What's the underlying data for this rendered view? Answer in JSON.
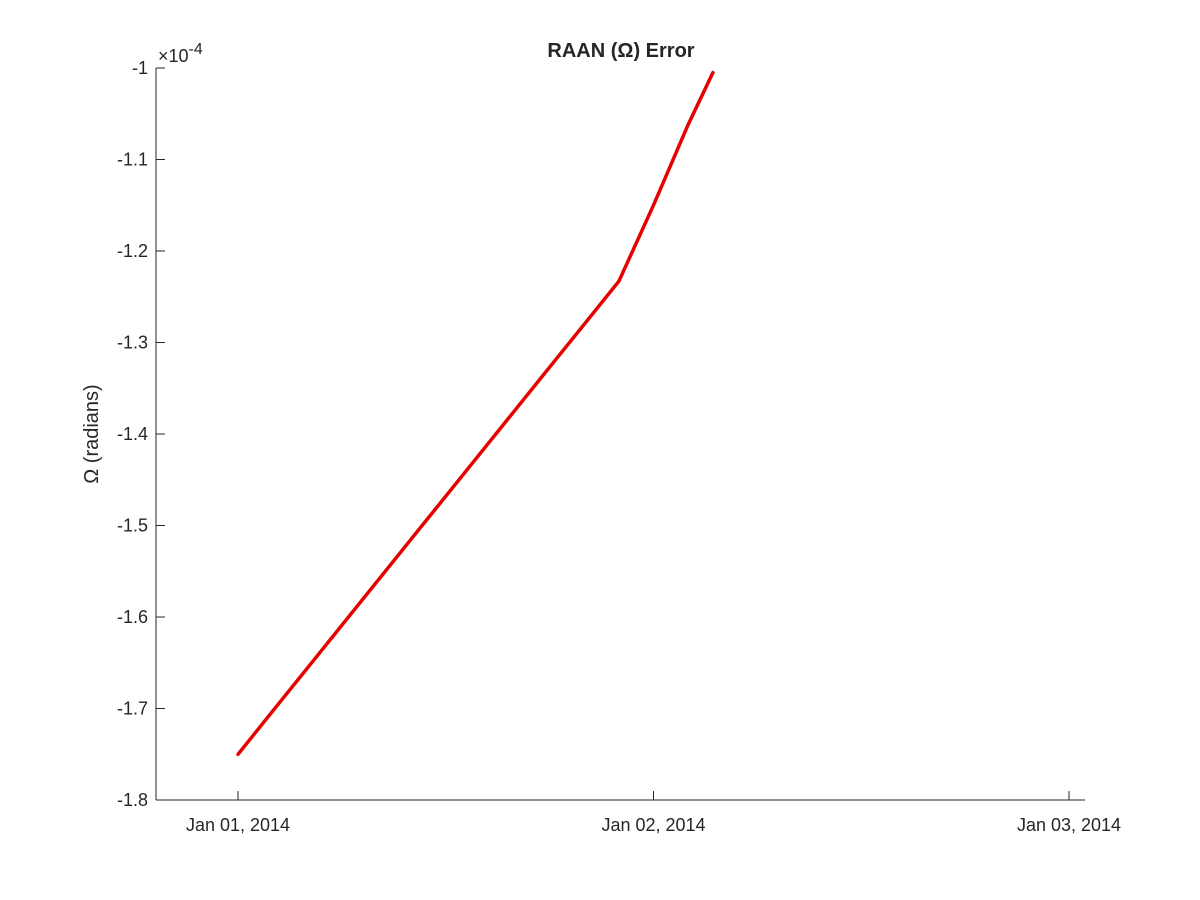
{
  "chart_data": {
    "type": "line",
    "title": "RAAN (Ω) Error",
    "ylabel": "Ω (radians)",
    "xlabel": "",
    "y_exponent": {
      "multiplier": "×10",
      "power": "-4"
    },
    "xlim": [
      "2014-01-01T00:00",
      "2014-01-03T00:00"
    ],
    "ylim": [
      -1.8,
      -1.0
    ],
    "x_ticks": [
      "2014-01-01T00:00",
      "2014-01-02T00:00",
      "2014-01-03T00:00"
    ],
    "x_tick_labels": [
      "Jan 01, 2014",
      "Jan 02, 2014",
      "Jan 03, 2014"
    ],
    "y_ticks": [
      -1.8,
      -1.7,
      -1.6,
      -1.5,
      -1.4,
      -1.3,
      -1.2,
      -1.1,
      -1.0
    ],
    "y_tick_labels": [
      "-1.8",
      "-1.7",
      "-1.6",
      "-1.5",
      "-1.4",
      "-1.3",
      "-1.2",
      "-1.1",
      "-1"
    ],
    "grid": false,
    "box": false,
    "series": [
      {
        "color": "#e60000",
        "x": [
          "2014-01-01T00:00",
          "2014-01-01T02:00",
          "2014-01-01T04:00",
          "2014-01-01T06:00",
          "2014-01-01T08:00",
          "2014-01-01T10:00",
          "2014-01-01T12:00",
          "2014-01-01T14:00",
          "2014-01-01T16:00",
          "2014-01-01T18:00",
          "2014-01-01T20:00",
          "2014-01-01T22:00",
          "2014-01-02T00:00",
          "2014-01-02T02:00",
          "2014-01-02T03:26"
        ],
        "y": [
          -1.75,
          -1.703,
          -1.656,
          -1.609,
          -1.562,
          -1.515,
          -1.468,
          -1.421,
          -1.374,
          -1.327,
          -1.28,
          -1.233,
          -1.15,
          -1.062,
          -1.005
        ]
      }
    ]
  }
}
